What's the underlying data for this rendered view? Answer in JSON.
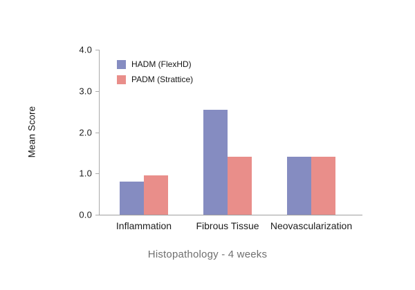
{
  "chart_data": {
    "type": "bar",
    "title": "Histopathology - 4 weeks",
    "xlabel": "",
    "ylabel": "Mean Score",
    "categories": [
      "Inflammation",
      "Fibrous Tissue",
      "Neovascularization"
    ],
    "series": [
      {
        "name": "HADM (FlexHD)",
        "color": "#858cc1",
        "values": [
          0.8,
          2.55,
          1.4
        ]
      },
      {
        "name": "PADM (Strattice)",
        "color": "#e98e8a",
        "values": [
          0.95,
          1.4,
          1.4
        ]
      }
    ],
    "ylim": [
      0,
      4
    ],
    "yticks": [
      0.0,
      1.0,
      2.0,
      3.0,
      4.0
    ],
    "ytick_labels": [
      "0.0",
      "1.0",
      "2.0",
      "3.0",
      "4.0"
    ],
    "grid": false,
    "legend_position": "upper-left"
  },
  "colors": {
    "axis_line": "#a9a9a9",
    "tick_text": "#1b1b1b",
    "caption_text": "#6f6f6f",
    "background": "#ffffff"
  }
}
